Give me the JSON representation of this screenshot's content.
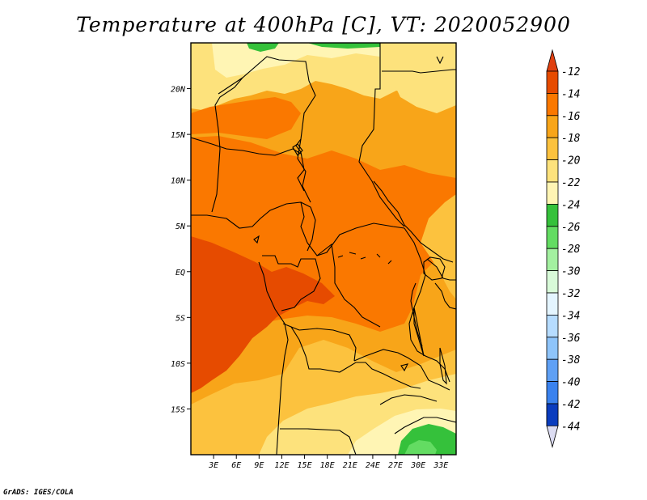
{
  "title": "Temperature at 400hPa [C], VT: 2020052900",
  "credit": "GrADS: IGES/COLA",
  "map": {
    "lon_range": [
      0,
      35
    ],
    "lat_range": [
      -20,
      25
    ],
    "lat_ticks": [
      {
        "lat": 20,
        "label": "20N"
      },
      {
        "lat": 15,
        "label": "15N"
      },
      {
        "lat": 10,
        "label": "10N"
      },
      {
        "lat": 5,
        "label": "5N"
      },
      {
        "lat": 0,
        "label": "EQ"
      },
      {
        "lat": -5,
        "label": "5S"
      },
      {
        "lat": -10,
        "label": "10S"
      },
      {
        "lat": -15,
        "label": "15S"
      }
    ],
    "lon_ticks": [
      {
        "lon": 3,
        "label": "3E"
      },
      {
        "lon": 6,
        "label": "6E"
      },
      {
        "lon": 9,
        "label": "9E"
      },
      {
        "lon": 12,
        "label": "12E"
      },
      {
        "lon": 15,
        "label": "15E"
      },
      {
        "lon": 18,
        "label": "18E"
      },
      {
        "lon": 21,
        "label": "21E"
      },
      {
        "lon": 24,
        "label": "24E"
      },
      {
        "lon": 27,
        "label": "27E"
      },
      {
        "lon": 30,
        "label": "30E"
      },
      {
        "lon": 33,
        "label": "33E"
      }
    ]
  },
  "colorbar": {
    "levels": [
      {
        "label": "-12",
        "color": "#e64b00"
      },
      {
        "label": "-14",
        "color": "#fa7800"
      },
      {
        "label": "-16",
        "color": "#f8a519"
      },
      {
        "label": "-18",
        "color": "#fcc23e"
      },
      {
        "label": "-20",
        "color": "#fde27c"
      },
      {
        "label": "-22",
        "color": "#fff5b4"
      },
      {
        "label": "-24",
        "color": "#35c13b"
      },
      {
        "label": "-26",
        "color": "#63dc62"
      },
      {
        "label": "-28",
        "color": "#a3f0a0"
      },
      {
        "label": "-30",
        "color": "#d8fad8"
      },
      {
        "label": "-32",
        "color": "#e4f5ff"
      },
      {
        "label": "-34",
        "color": "#b6dcff"
      },
      {
        "label": "-36",
        "color": "#8ec4fa"
      },
      {
        "label": "-38",
        "color": "#5fa0f5"
      },
      {
        "label": "-40",
        "color": "#3a82ee"
      },
      {
        "label": "-42",
        "color": "#2060dc"
      },
      {
        "label": "-44",
        "color": "#0a3cbe"
      }
    ],
    "top_color": "#e04010",
    "bottom_color": "#dcdcf2",
    "extra_color": "#0e1e8c"
  }
}
